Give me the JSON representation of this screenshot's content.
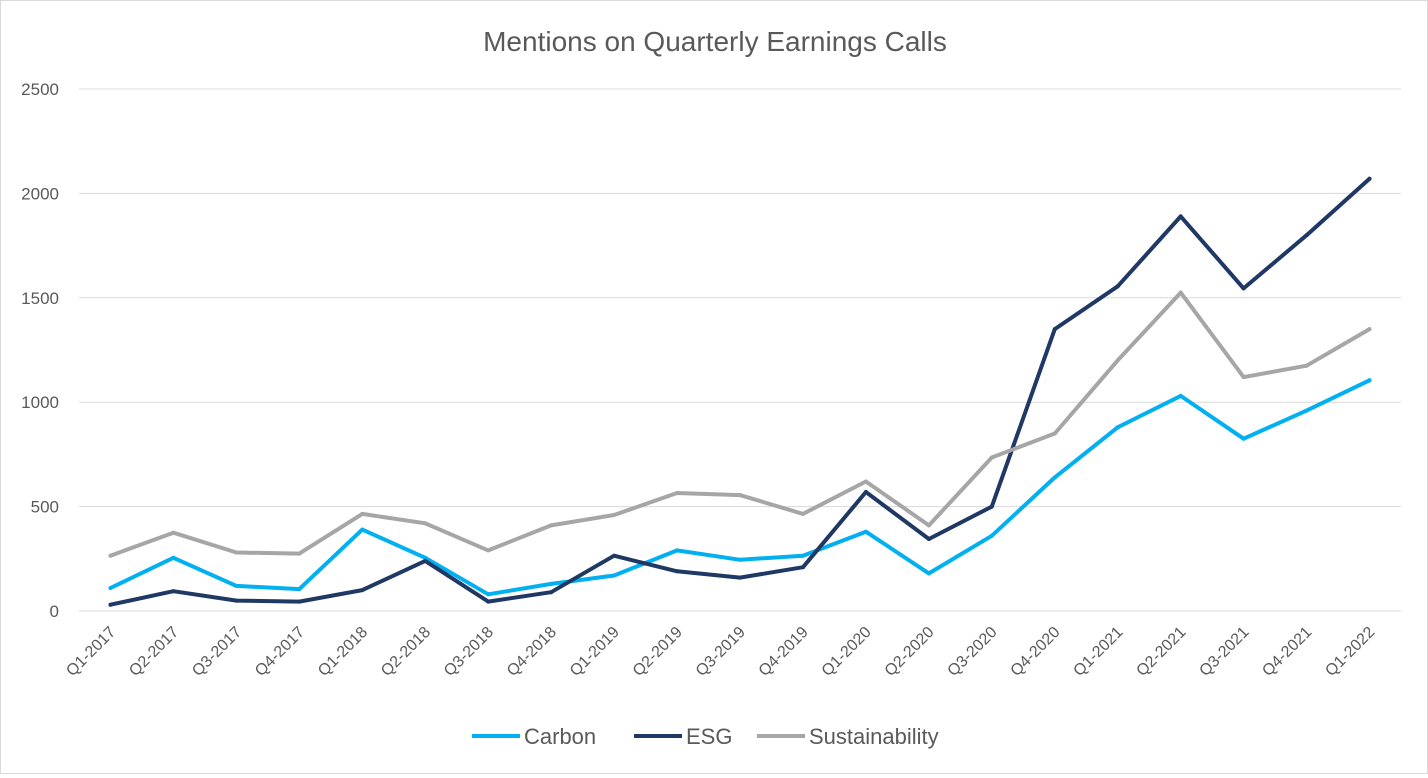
{
  "chart_data": {
    "type": "line",
    "title": "Mentions on Quarterly Earnings Calls",
    "xlabel": "",
    "ylabel": "",
    "ylim": [
      0,
      2500
    ],
    "yticks": [
      0,
      500,
      1000,
      1500,
      2000,
      2500
    ],
    "grid": true,
    "legend_position": "bottom",
    "categories": [
      "Q1-2017",
      "Q2-2017",
      "Q3-2017",
      "Q4-2017",
      "Q1-2018",
      "Q2-2018",
      "Q3-2018",
      "Q4-2018",
      "Q1-2019",
      "Q2-2019",
      "Q3-2019",
      "Q4-2019",
      "Q1-2020",
      "Q2-2020",
      "Q3-2020",
      "Q4-2020",
      "Q1-2021",
      "Q2-2021",
      "Q3-2021",
      "Q4-2021",
      "Q1-2022"
    ],
    "series": [
      {
        "name": "Carbon",
        "color": "#00b0f0",
        "values": [
          110,
          255,
          120,
          105,
          390,
          255,
          80,
          130,
          170,
          290,
          245,
          265,
          380,
          180,
          360,
          640,
          880,
          1030,
          825,
          960,
          1105
        ]
      },
      {
        "name": "ESG",
        "color": "#1f3864",
        "values": [
          30,
          95,
          50,
          45,
          100,
          240,
          45,
          90,
          265,
          190,
          160,
          210,
          570,
          345,
          500,
          1350,
          1555,
          1890,
          1545,
          1800,
          2070
        ]
      },
      {
        "name": "Sustainability",
        "color": "#a6a6a6",
        "values": [
          265,
          375,
          280,
          275,
          465,
          420,
          290,
          410,
          460,
          565,
          555,
          465,
          620,
          410,
          735,
          850,
          1200,
          1525,
          1120,
          1175,
          1350
        ]
      }
    ]
  }
}
